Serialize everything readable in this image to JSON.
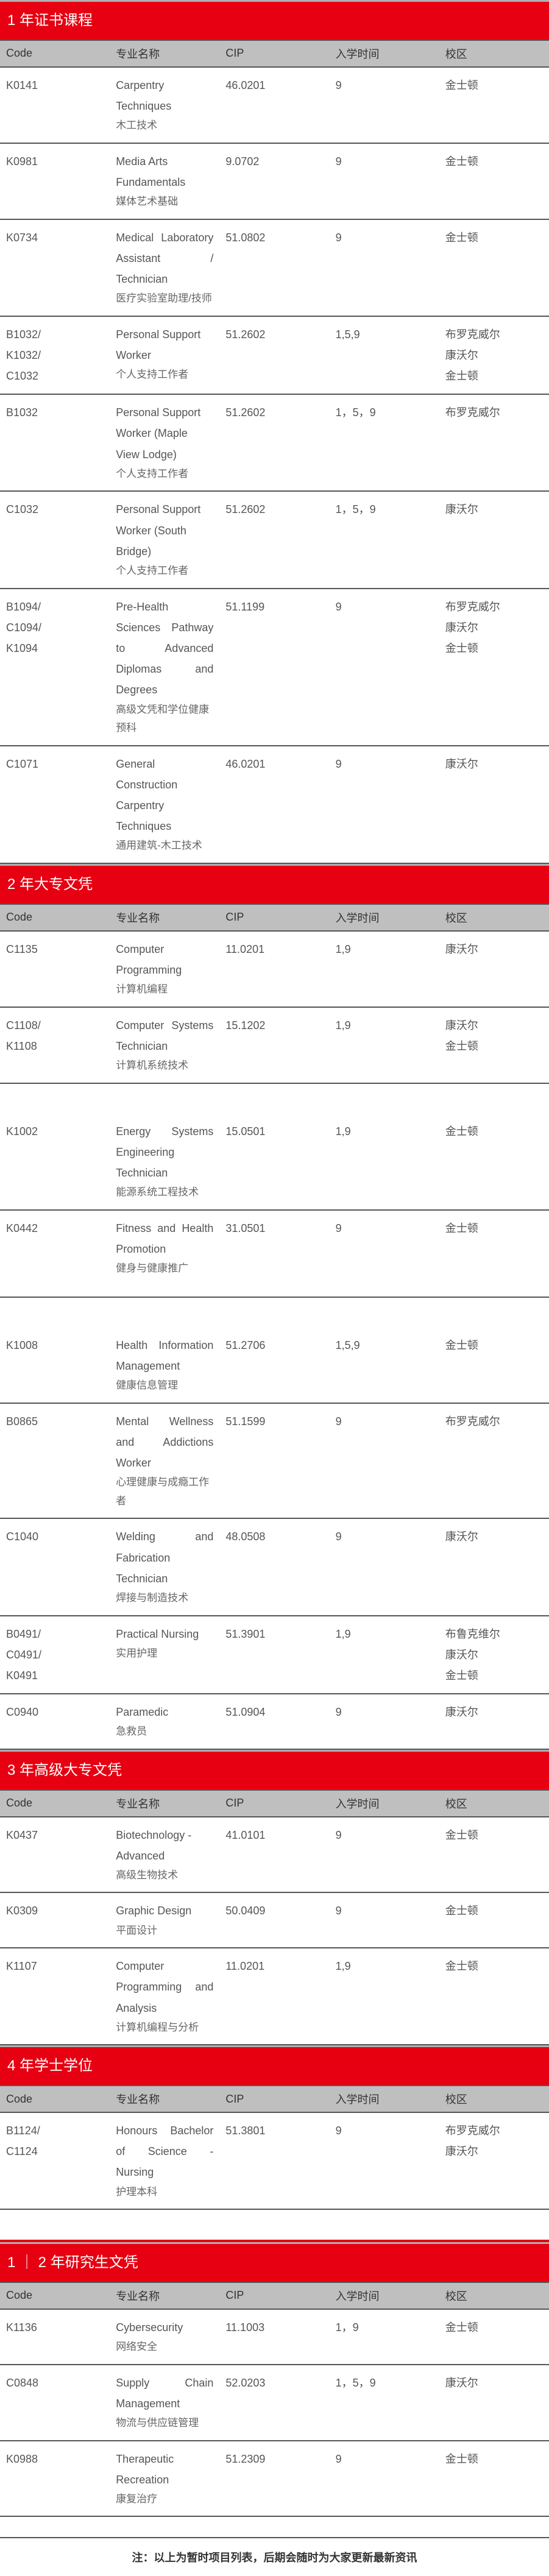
{
  "colors": {
    "section_bg": "#e60012",
    "section_text": "#ffffff",
    "header_bg": "#bfbfbf",
    "header_text": "#333333",
    "cell_text": "#555555",
    "border": "#555555"
  },
  "columns": {
    "code": "Code",
    "name": "专业名称",
    "cip": "CIP",
    "intake": "入学时间",
    "campus": "校区"
  },
  "sections": [
    {
      "title": "1 年证书课程",
      "rows": [
        {
          "code": "K0141",
          "name_en": "Carpentry Techniques",
          "name_cn": "木工技术",
          "cip": "46.0201",
          "intake": "9",
          "campus": "金士顿"
        },
        {
          "code": "K0981",
          "name_en": "Media Arts Fundamentals",
          "name_cn": "媒体艺术基础",
          "cip": "9.0702",
          "intake": "9",
          "campus": "金士顿"
        },
        {
          "code": "K0734",
          "name_en": "Medical Laboratory Assistant / Technician",
          "justify_en": true,
          "name_cn": "医疗实验室助理/技师",
          "cip": "51.0802",
          "intake": "9",
          "campus": "金士顿"
        },
        {
          "code": "B1032/\nK1032/\nC1032",
          "name_en": "Personal Support Worker",
          "name_cn": "个人支持工作者",
          "cip": "51.2602",
          "intake": "1,5,9",
          "campus": "布罗克威尔\n康沃尔\n金士顿"
        },
        {
          "code": "B1032",
          "name_en": "Personal Support Worker (Maple View Lodge)",
          "name_cn": "个人支持工作者",
          "cip": "51.2602",
          "intake": "1，5，9",
          "campus": "布罗克威尔"
        },
        {
          "code": "C1032",
          "name_en": "Personal Support Worker (South Bridge)",
          "name_cn": "个人支持工作者",
          "cip": "51.2602",
          "intake": "1，5，9",
          "campus": "康沃尔"
        },
        {
          "code": "B1094/\nC1094/\nK1094",
          "name_en": "Pre-Health Sciences Pathway to Advanced Diplomas and Degrees",
          "justify_en": true,
          "name_cn": "高级文凭和学位健康预科",
          "cip": "51.1199",
          "intake": "9",
          "campus": "布罗克威尔\n康沃尔\n金士顿"
        },
        {
          "code": "C1071",
          "name_en": "General Construction Carpentry Techniques",
          "justify_en": true,
          "name_cn": "通用建筑-木工技术",
          "cip": "46.0201",
          "intake": "9",
          "campus": "康沃尔"
        }
      ]
    },
    {
      "title": "2 年大专文凭",
      "rows": [
        {
          "code": "C1135",
          "name_en": "Computer Programming",
          "name_cn": "计算机编程",
          "cip": "11.0201",
          "intake": "1,9",
          "campus": "康沃尔"
        },
        {
          "code": "C1108/\nK1108",
          "name_en": "Computer Systems Technician",
          "justify_en": true,
          "name_cn": "计算机系统技术",
          "cip": "15.1202",
          "intake": "1,9",
          "campus": "康沃尔\n金士顿"
        }
      ],
      "gap_after": true,
      "rows2": [
        {
          "code": "K1002",
          "name_en": "Energy Systems Engineering Technician",
          "justify_en": true,
          "name_cn": "能源系统工程技术",
          "cip": "15.0501",
          "intake": "1,9",
          "campus": "金士顿"
        },
        {
          "code": "K0442",
          "name_en": "Fitness and Health Promotion",
          "justify_en": true,
          "name_cn": "健身与健康推广",
          "cip": "31.0501",
          "intake": "9",
          "campus": "金士顿",
          "extra_pad": true
        }
      ],
      "gap_after2": true,
      "rows3": [
        {
          "code": "K1008",
          "name_en": "Health Information Management",
          "justify_en": true,
          "name_cn": "健康信息管理",
          "cip": "51.2706",
          "intake": "1,5,9",
          "campus": "金士顿"
        },
        {
          "code": "B0865",
          "name_en": "Mental Wellness and Addictions Worker",
          "justify_en": true,
          "name_cn": "心理健康与成瘾工作者",
          "cip": "51.1599",
          "intake": "9",
          "campus": "布罗克威尔"
        },
        {
          "code": "C1040",
          "name_en": "Welding and Fabrication Technician",
          "justify_en": true,
          "name_cn": "焊接与制造技术",
          "cip": "48.0508",
          "intake": "9",
          "campus": "康沃尔"
        },
        {
          "code": "B0491/\nC0491/\nK0491",
          "name_en": "Practical Nursing",
          "name_cn": "实用护理",
          "cip": "51.3901",
          "intake": "1,9",
          "campus": "布鲁克维尔\n康沃尔\n金士顿"
        },
        {
          "code": "C0940",
          "name_en": "Paramedic",
          "name_cn": "急救员",
          "cip": "51.0904",
          "intake": "9",
          "campus": "康沃尔"
        }
      ]
    },
    {
      "title": "3 年高级大专文凭",
      "rows": [
        {
          "code": "K0437",
          "name_en": "Biotechnology - Advanced",
          "name_cn": "高级生物技术",
          "cip": "41.0101",
          "intake": "9",
          "campus": "金士顿"
        },
        {
          "code": "K0309",
          "name_en": "Graphic Design",
          "name_cn": "平面设计",
          "cip": "50.0409",
          "intake": "9",
          "campus": "金士顿"
        },
        {
          "code": "K1107",
          "name_en": "Computer Programming and Analysis",
          "justify_en": true,
          "name_cn": "计算机编程与分析",
          "cip": "11.0201",
          "intake": "1,9",
          "campus": "金士顿"
        }
      ]
    },
    {
      "title": "4 年学士学位",
      "rows": [
        {
          "code": "B1124/\nC1124",
          "name_en": "Honours Bachelor of Science - Nursing",
          "justify_en": true,
          "name_cn": "护理本科",
          "cip": "51.3801",
          "intake": "9",
          "campus": "布罗克威尔\n康沃尔"
        }
      ],
      "bottom_gap": true
    },
    {
      "title": "1 ｜ 2 年研究生文凭",
      "pre_divider": true,
      "rows": [
        {
          "code": "K1136",
          "name_en": "Cybersecurity",
          "name_cn": "网络安全",
          "cip": "11.1003",
          "intake": "1，9",
          "campus": "金士顿"
        },
        {
          "code": "C0848",
          "name_en": "Supply Chain Management",
          "justify_en": true,
          "name_cn": "物流与供应链管理",
          "cip": "52.0203",
          "intake": "1，5，9",
          "campus": "康沃尔"
        },
        {
          "code": "K0988",
          "name_en": "Therapeutic Recreation",
          "name_cn": "康复治疗",
          "cip": "51.2309",
          "intake": "9",
          "campus": "金士顿"
        }
      ],
      "empty_last": true
    }
  ],
  "footnote": "注：以上为暂时项目列表，后期会随时为大家更新最新资讯"
}
